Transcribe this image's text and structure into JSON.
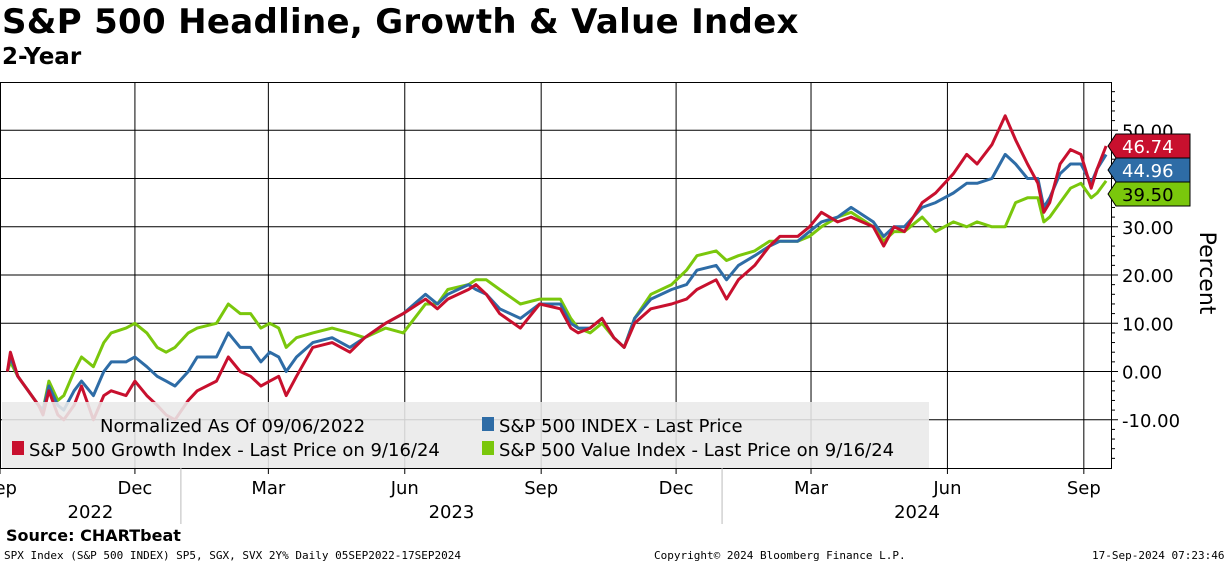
{
  "header": {
    "title": "S&P 500 Headline, Growth & Value Index",
    "subtitle": "2-Year"
  },
  "footer": {
    "source": "Source: CHARTbeat",
    "ticker_info": "SPX Index (S&P 500 INDEX) SP5, SGX, SVX 2Y%  Daily 05SEP2022-17SEP2024",
    "copyright": "Copyright© 2024 Bloomberg Finance L.P.",
    "timestamp": "17-Sep-2024 07:23:46"
  },
  "chart_data": {
    "type": "line",
    "ylabel": "Percent",
    "ylim": [
      -20,
      60
    ],
    "y_ticks": [
      -10,
      0,
      10,
      20,
      30,
      40,
      50
    ],
    "y_tick_labels": [
      "-10.00",
      "0.00",
      "10.00",
      "20.00",
      "30.00",
      "40.00",
      "50.00"
    ],
    "grid": true,
    "x_tick_labels": [
      "Sep",
      "Dec",
      "Mar",
      "Jun",
      "Sep",
      "Dec",
      "Mar",
      "Jun",
      "Sep"
    ],
    "x_tick_dates": [
      "2022-09-01",
      "2022-12-01",
      "2023-03-01",
      "2023-06-01",
      "2023-09-01",
      "2023-12-01",
      "2024-03-01",
      "2024-06-01",
      "2024-09-01"
    ],
    "year_labels": [
      "2022",
      "2023",
      "2024"
    ],
    "x_range": [
      "2022-09-01",
      "2024-09-20"
    ],
    "legend_note": "Normalized As Of 09/06/2022",
    "legend_placement": "bottom-left",
    "series": [
      {
        "name": "S&P 500 Growth Index - Last Price on 9/16/24",
        "color": "#c8102e",
        "last_value_label": "46.74",
        "points": [
          [
            "2022-09-06",
            0
          ],
          [
            "2022-09-08",
            4
          ],
          [
            "2022-09-13",
            -1
          ],
          [
            "2022-09-20",
            -4
          ],
          [
            "2022-09-27",
            -7
          ],
          [
            "2022-09-30",
            -9
          ],
          [
            "2022-10-04",
            -4
          ],
          [
            "2022-10-10",
            -9
          ],
          [
            "2022-10-14",
            -10
          ],
          [
            "2022-10-21",
            -7
          ],
          [
            "2022-10-26",
            -3
          ],
          [
            "2022-11-03",
            -10
          ],
          [
            "2022-11-10",
            -5
          ],
          [
            "2022-11-15",
            -4
          ],
          [
            "2022-11-25",
            -5
          ],
          [
            "2022-12-01",
            -2
          ],
          [
            "2022-12-09",
            -5
          ],
          [
            "2022-12-16",
            -7
          ],
          [
            "2022-12-22",
            -9
          ],
          [
            "2022-12-28",
            -10
          ],
          [
            "2023-01-06",
            -6
          ],
          [
            "2023-01-12",
            -4
          ],
          [
            "2023-01-25",
            -2
          ],
          [
            "2023-02-02",
            3
          ],
          [
            "2023-02-10",
            0
          ],
          [
            "2023-02-17",
            -1
          ],
          [
            "2023-02-24",
            -3
          ],
          [
            "2023-03-02",
            -2
          ],
          [
            "2023-03-08",
            -1
          ],
          [
            "2023-03-13",
            -5
          ],
          [
            "2023-03-20",
            -1
          ],
          [
            "2023-03-31",
            5
          ],
          [
            "2023-04-13",
            6
          ],
          [
            "2023-04-25",
            4
          ],
          [
            "2023-05-05",
            7
          ],
          [
            "2023-05-19",
            10
          ],
          [
            "2023-05-31",
            12
          ],
          [
            "2023-06-15",
            15
          ],
          [
            "2023-06-23",
            13
          ],
          [
            "2023-06-30",
            15
          ],
          [
            "2023-07-14",
            17
          ],
          [
            "2023-07-19",
            18
          ],
          [
            "2023-07-26",
            16
          ],
          [
            "2023-08-04",
            12
          ],
          [
            "2023-08-18",
            9
          ],
          [
            "2023-08-31",
            14
          ],
          [
            "2023-09-14",
            13
          ],
          [
            "2023-09-21",
            9
          ],
          [
            "2023-09-26",
            8
          ],
          [
            "2023-10-04",
            9
          ],
          [
            "2023-10-12",
            11
          ],
          [
            "2023-10-20",
            7
          ],
          [
            "2023-10-27",
            5
          ],
          [
            "2023-11-03",
            10
          ],
          [
            "2023-11-14",
            13
          ],
          [
            "2023-11-28",
            14
          ],
          [
            "2023-12-08",
            15
          ],
          [
            "2023-12-15",
            17
          ],
          [
            "2023-12-28",
            19
          ],
          [
            "2024-01-04",
            15
          ],
          [
            "2024-01-12",
            19
          ],
          [
            "2024-01-23",
            22
          ],
          [
            "2024-02-02",
            26
          ],
          [
            "2024-02-09",
            28
          ],
          [
            "2024-02-21",
            28
          ],
          [
            "2024-02-29",
            30
          ],
          [
            "2024-03-08",
            33
          ],
          [
            "2024-03-19",
            31
          ],
          [
            "2024-03-28",
            32
          ],
          [
            "2024-04-12",
            30
          ],
          [
            "2024-04-19",
            26
          ],
          [
            "2024-04-26",
            30
          ],
          [
            "2024-05-03",
            29
          ],
          [
            "2024-05-15",
            35
          ],
          [
            "2024-05-24",
            37
          ],
          [
            "2024-06-05",
            41
          ],
          [
            "2024-06-14",
            45
          ],
          [
            "2024-06-21",
            43
          ],
          [
            "2024-07-01",
            47
          ],
          [
            "2024-07-10",
            53
          ],
          [
            "2024-07-17",
            48
          ],
          [
            "2024-07-25",
            43
          ],
          [
            "2024-08-01",
            39
          ],
          [
            "2024-08-05",
            33
          ],
          [
            "2024-08-09",
            35
          ],
          [
            "2024-08-16",
            43
          ],
          [
            "2024-08-23",
            46
          ],
          [
            "2024-08-30",
            45
          ],
          [
            "2024-09-06",
            38
          ],
          [
            "2024-09-10",
            42
          ],
          [
            "2024-09-16",
            46.74
          ]
        ]
      },
      {
        "name": "S&P 500 INDEX - Last Price",
        "color": "#2e6ca6",
        "last_value_label": "44.96",
        "points": [
          [
            "2022-09-06",
            0
          ],
          [
            "2022-09-08",
            3
          ],
          [
            "2022-09-13",
            -1
          ],
          [
            "2022-09-20",
            -4
          ],
          [
            "2022-09-27",
            -7
          ],
          [
            "2022-09-30",
            -8
          ],
          [
            "2022-10-04",
            -3
          ],
          [
            "2022-10-10",
            -7
          ],
          [
            "2022-10-14",
            -8
          ],
          [
            "2022-10-21",
            -4
          ],
          [
            "2022-10-26",
            -2
          ],
          [
            "2022-11-03",
            -5
          ],
          [
            "2022-11-10",
            0
          ],
          [
            "2022-11-15",
            2
          ],
          [
            "2022-11-25",
            2
          ],
          [
            "2022-12-01",
            3
          ],
          [
            "2022-12-09",
            1
          ],
          [
            "2022-12-16",
            -1
          ],
          [
            "2022-12-22",
            -2
          ],
          [
            "2022-12-28",
            -3
          ],
          [
            "2023-01-06",
            0
          ],
          [
            "2023-01-12",
            3
          ],
          [
            "2023-01-25",
            3
          ],
          [
            "2023-02-02",
            8
          ],
          [
            "2023-02-10",
            5
          ],
          [
            "2023-02-17",
            5
          ],
          [
            "2023-02-24",
            2
          ],
          [
            "2023-03-02",
            4
          ],
          [
            "2023-03-08",
            3
          ],
          [
            "2023-03-13",
            0
          ],
          [
            "2023-03-20",
            3
          ],
          [
            "2023-03-31",
            6
          ],
          [
            "2023-04-13",
            7
          ],
          [
            "2023-04-25",
            5
          ],
          [
            "2023-05-05",
            7
          ],
          [
            "2023-05-19",
            10
          ],
          [
            "2023-05-31",
            12
          ],
          [
            "2023-06-15",
            16
          ],
          [
            "2023-06-23",
            14
          ],
          [
            "2023-06-30",
            16
          ],
          [
            "2023-07-14",
            18
          ],
          [
            "2023-07-19",
            17
          ],
          [
            "2023-07-26",
            16
          ],
          [
            "2023-08-04",
            13
          ],
          [
            "2023-08-18",
            11
          ],
          [
            "2023-08-31",
            14
          ],
          [
            "2023-09-14",
            14
          ],
          [
            "2023-09-21",
            10
          ],
          [
            "2023-09-26",
            9
          ],
          [
            "2023-10-04",
            9
          ],
          [
            "2023-10-12",
            11
          ],
          [
            "2023-10-20",
            7
          ],
          [
            "2023-10-27",
            5
          ],
          [
            "2023-11-03",
            11
          ],
          [
            "2023-11-14",
            15
          ],
          [
            "2023-11-28",
            17
          ],
          [
            "2023-12-08",
            18
          ],
          [
            "2023-12-15",
            21
          ],
          [
            "2023-12-28",
            22
          ],
          [
            "2024-01-04",
            19
          ],
          [
            "2024-01-12",
            22
          ],
          [
            "2024-01-23",
            24
          ],
          [
            "2024-02-02",
            26
          ],
          [
            "2024-02-09",
            27
          ],
          [
            "2024-02-21",
            27
          ],
          [
            "2024-02-29",
            29
          ],
          [
            "2024-03-08",
            31
          ],
          [
            "2024-03-19",
            32
          ],
          [
            "2024-03-28",
            34
          ],
          [
            "2024-04-12",
            31
          ],
          [
            "2024-04-19",
            28
          ],
          [
            "2024-04-26",
            30
          ],
          [
            "2024-05-03",
            30
          ],
          [
            "2024-05-15",
            34
          ],
          [
            "2024-05-24",
            35
          ],
          [
            "2024-06-05",
            37
          ],
          [
            "2024-06-14",
            39
          ],
          [
            "2024-06-21",
            39
          ],
          [
            "2024-07-01",
            40
          ],
          [
            "2024-07-10",
            45
          ],
          [
            "2024-07-17",
            43
          ],
          [
            "2024-07-25",
            40
          ],
          [
            "2024-08-01",
            40
          ],
          [
            "2024-08-05",
            34
          ],
          [
            "2024-08-09",
            36
          ],
          [
            "2024-08-16",
            41
          ],
          [
            "2024-08-23",
            43
          ],
          [
            "2024-08-30",
            43
          ],
          [
            "2024-09-06",
            39
          ],
          [
            "2024-09-10",
            42
          ],
          [
            "2024-09-16",
            44.96
          ]
        ]
      },
      {
        "name": "S&P 500 Value Index - Last Price on 9/16/24",
        "color": "#7ac70c",
        "last_value_label": "39.50",
        "points": [
          [
            "2022-09-06",
            0
          ],
          [
            "2022-09-08",
            2
          ],
          [
            "2022-09-13",
            -1
          ],
          [
            "2022-09-20",
            -4
          ],
          [
            "2022-09-27",
            -7
          ],
          [
            "2022-09-30",
            -8
          ],
          [
            "2022-10-04",
            -2
          ],
          [
            "2022-10-10",
            -6
          ],
          [
            "2022-10-14",
            -5
          ],
          [
            "2022-10-21",
            0
          ],
          [
            "2022-10-26",
            3
          ],
          [
            "2022-11-03",
            1
          ],
          [
            "2022-11-10",
            6
          ],
          [
            "2022-11-15",
            8
          ],
          [
            "2022-11-25",
            9
          ],
          [
            "2022-12-01",
            10
          ],
          [
            "2022-12-09",
            8
          ],
          [
            "2022-12-16",
            5
          ],
          [
            "2022-12-22",
            4
          ],
          [
            "2022-12-28",
            5
          ],
          [
            "2023-01-06",
            8
          ],
          [
            "2023-01-12",
            9
          ],
          [
            "2023-01-25",
            10
          ],
          [
            "2023-02-02",
            14
          ],
          [
            "2023-02-10",
            12
          ],
          [
            "2023-02-17",
            12
          ],
          [
            "2023-02-24",
            9
          ],
          [
            "2023-03-02",
            10
          ],
          [
            "2023-03-08",
            9
          ],
          [
            "2023-03-13",
            5
          ],
          [
            "2023-03-20",
            7
          ],
          [
            "2023-03-31",
            8
          ],
          [
            "2023-04-13",
            9
          ],
          [
            "2023-04-25",
            8
          ],
          [
            "2023-05-05",
            7
          ],
          [
            "2023-05-19",
            9
          ],
          [
            "2023-05-31",
            8
          ],
          [
            "2023-06-15",
            14
          ],
          [
            "2023-06-23",
            14
          ],
          [
            "2023-06-30",
            17
          ],
          [
            "2023-07-14",
            18
          ],
          [
            "2023-07-19",
            19
          ],
          [
            "2023-07-26",
            19
          ],
          [
            "2023-08-04",
            17
          ],
          [
            "2023-08-18",
            14
          ],
          [
            "2023-08-31",
            15
          ],
          [
            "2023-09-14",
            15
          ],
          [
            "2023-09-21",
            11
          ],
          [
            "2023-09-26",
            9
          ],
          [
            "2023-10-04",
            8
          ],
          [
            "2023-10-12",
            10
          ],
          [
            "2023-10-20",
            7
          ],
          [
            "2023-10-27",
            5
          ],
          [
            "2023-11-03",
            11
          ],
          [
            "2023-11-14",
            16
          ],
          [
            "2023-11-28",
            18
          ],
          [
            "2023-12-08",
            21
          ],
          [
            "2023-12-15",
            24
          ],
          [
            "2023-12-28",
            25
          ],
          [
            "2024-01-04",
            23
          ],
          [
            "2024-01-12",
            24
          ],
          [
            "2024-01-23",
            25
          ],
          [
            "2024-02-02",
            27
          ],
          [
            "2024-02-09",
            27
          ],
          [
            "2024-02-21",
            27
          ],
          [
            "2024-02-29",
            28
          ],
          [
            "2024-03-08",
            30
          ],
          [
            "2024-03-19",
            32
          ],
          [
            "2024-03-28",
            33
          ],
          [
            "2024-04-12",
            30
          ],
          [
            "2024-04-19",
            27
          ],
          [
            "2024-04-26",
            29
          ],
          [
            "2024-05-03",
            29
          ],
          [
            "2024-05-15",
            32
          ],
          [
            "2024-05-24",
            29
          ],
          [
            "2024-06-05",
            31
          ],
          [
            "2024-06-14",
            30
          ],
          [
            "2024-06-21",
            31
          ],
          [
            "2024-07-01",
            30
          ],
          [
            "2024-07-10",
            30
          ],
          [
            "2024-07-17",
            35
          ],
          [
            "2024-07-25",
            36
          ],
          [
            "2024-08-01",
            36
          ],
          [
            "2024-08-05",
            31
          ],
          [
            "2024-08-09",
            32
          ],
          [
            "2024-08-16",
            35
          ],
          [
            "2024-08-23",
            38
          ],
          [
            "2024-08-30",
            39
          ],
          [
            "2024-09-06",
            36
          ],
          [
            "2024-09-10",
            37
          ],
          [
            "2024-09-16",
            39.5
          ]
        ]
      }
    ],
    "right_labels_order": [
      0,
      1,
      2
    ]
  }
}
